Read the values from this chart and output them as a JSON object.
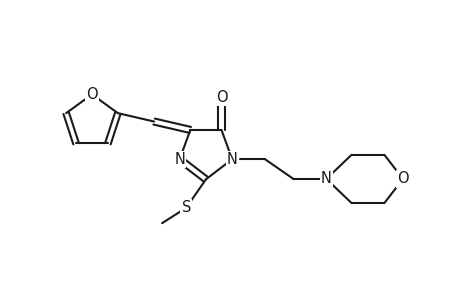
{
  "bg_color": "#ffffff",
  "line_color": "#1a1a1a",
  "line_width": 1.5,
  "font_size": 10.5,
  "figsize": [
    4.6,
    3.0
  ],
  "dpi": 100,
  "xlim": [
    0,
    10.5
  ],
  "ylim": [
    0,
    6.5
  ]
}
